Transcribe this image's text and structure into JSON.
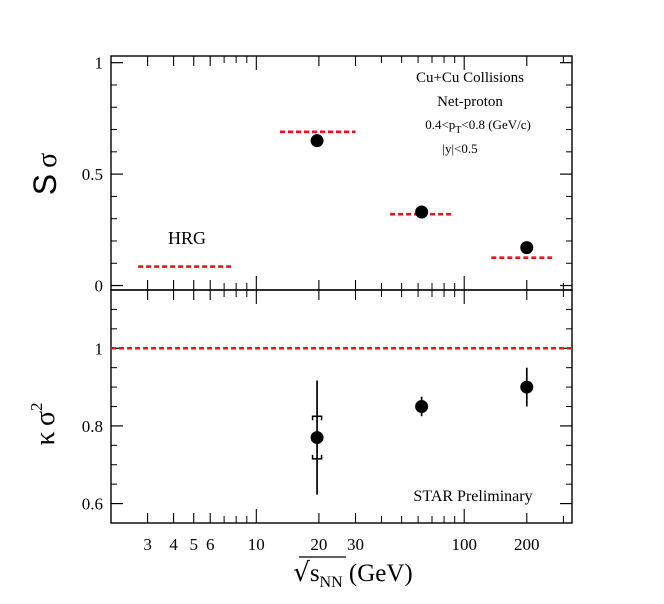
{
  "chart_data": [
    {
      "type": "scatter",
      "panel": "top",
      "ylabel": "S σ",
      "ylabel_main": "S",
      "ylabel_sigma": "σ",
      "ylim": [
        -0.02,
        1.03
      ],
      "xscale": "log",
      "xlim": [
        2,
        330
      ],
      "yticks_major": [
        0,
        0.5,
        1
      ],
      "ytick_labels": [
        "0",
        "0.5",
        "1"
      ],
      "yticks_minor": [
        0.1,
        0.2,
        0.3,
        0.4,
        0.6,
        0.7,
        0.8,
        0.9
      ],
      "annotations": {
        "collision": "Cu+Cu Collisions",
        "particle": "Net-proton",
        "pt_prefix": "0.4<p",
        "pt_sub": "T",
        "pt_suffix": "<0.8 (GeV/c)",
        "rapidity": "|y|<0.5",
        "legend_hrg": "HRG"
      },
      "points": [
        {
          "x": 19.6,
          "y": 0.65,
          "err": 0.02
        },
        {
          "x": 62.4,
          "y": 0.33,
          "err": 0.0
        },
        {
          "x": 200,
          "y": 0.17,
          "err": 0.0
        }
      ],
      "hrg_segments": [
        {
          "x1": 2.7,
          "x2": 7.8,
          "y": 0.085
        },
        {
          "x1": 13,
          "x2": 30,
          "y": 0.69
        },
        {
          "x1": 44,
          "x2": 88,
          "y": 0.32
        },
        {
          "x1": 135,
          "x2": 265,
          "y": 0.125
        }
      ],
      "colors": {
        "points": "#000000",
        "hrg": "#e8141c"
      }
    },
    {
      "type": "scatter",
      "panel": "bottom",
      "ylabel": "κ σ²",
      "ylabel_main": "κ",
      "ylabel_sigma": "σ",
      "ylabel_sup": "2",
      "ylim": [
        0.55,
        1.15
      ],
      "xscale": "log",
      "xlim": [
        2,
        330
      ],
      "yticks_major": [
        0.6,
        0.8,
        1
      ],
      "ytick_labels": [
        "0.6",
        "0.8",
        "1"
      ],
      "yticks_minor": [
        0.65,
        0.7,
        0.75,
        0.85,
        0.9,
        0.95,
        1.05,
        1.1
      ],
      "annotations": {
        "preliminary": "STAR Preliminary"
      },
      "points": [
        {
          "x": 19.6,
          "y": 0.77,
          "err": 0.147,
          "sys": 0.055
        },
        {
          "x": 62.4,
          "y": 0.85,
          "err": 0.025
        },
        {
          "x": 200,
          "y": 0.9,
          "err": 0.05
        }
      ],
      "hrg_line": {
        "y": 1.0
      },
      "colors": {
        "points": "#000000",
        "hrg": "#e8141c"
      }
    }
  ],
  "xaxis": {
    "label_sqrt_symbol": "√",
    "label_var": "s",
    "label_sub": "NN",
    "label_unit": " (GeV)",
    "ticks": [
      3,
      4,
      5,
      6,
      10,
      20,
      30,
      100,
      200
    ],
    "tick_labels": [
      "3",
      "4",
      "5",
      "6",
      "10",
      "20",
      "30",
      "100",
      "200"
    ],
    "minor_ticks": [
      7,
      8,
      9,
      40,
      50,
      60,
      70,
      80,
      90,
      300
    ]
  }
}
